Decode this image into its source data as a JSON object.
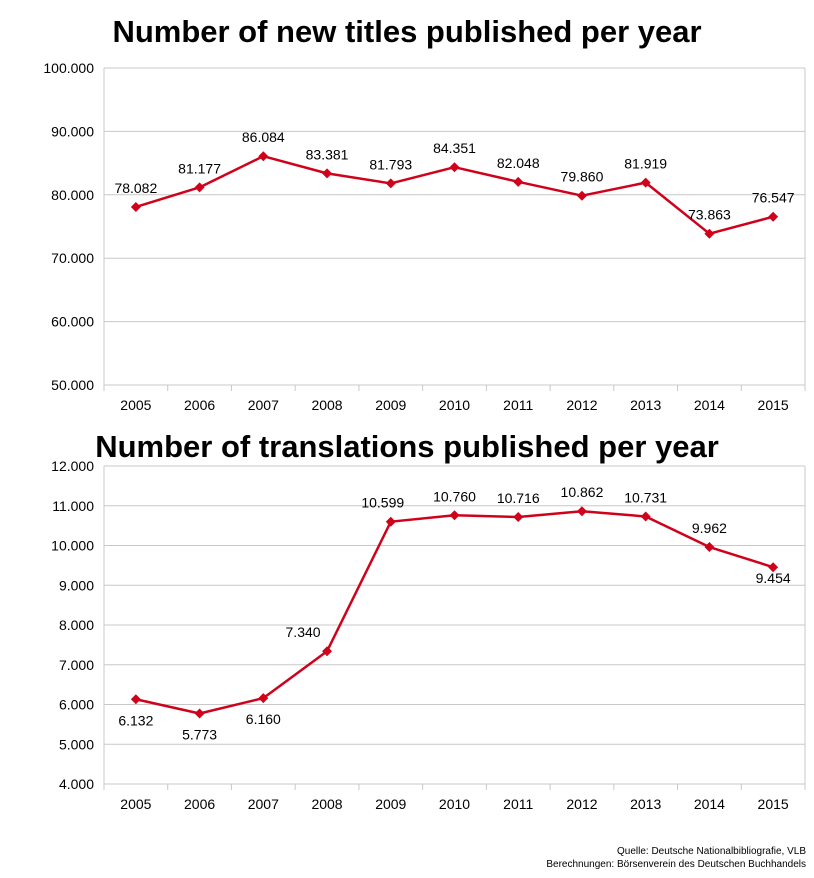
{
  "chart_data": [
    {
      "type": "line",
      "title": "Number of new titles published per year",
      "categories": [
        "2005",
        "2006",
        "2007",
        "2008",
        "2009",
        "2010",
        "2011",
        "2012",
        "2013",
        "2014",
        "2015"
      ],
      "values": [
        78082,
        81177,
        86084,
        83381,
        81793,
        84351,
        82048,
        79860,
        81919,
        73863,
        76547
      ],
      "value_labels": [
        "78.082",
        "81.177",
        "86.084",
        "83.381",
        "81.793",
        "84.351",
        "82.048",
        "79.860",
        "81.919",
        "73.863",
        "76.547"
      ],
      "ylim": [
        50000,
        100000
      ],
      "yticks": [
        50000,
        60000,
        70000,
        80000,
        90000,
        100000
      ],
      "ytick_labels": [
        "50.000",
        "60.000",
        "70.000",
        "80.000",
        "90.000",
        "100.000"
      ],
      "grid": true,
      "color": "#d0021b"
    },
    {
      "type": "line",
      "title": "Number of translations published per year",
      "categories": [
        "2005",
        "2006",
        "2007",
        "2008",
        "2009",
        "2010",
        "2011",
        "2012",
        "2013",
        "2014",
        "2015"
      ],
      "values": [
        6132,
        5773,
        6160,
        7340,
        10599,
        10760,
        10716,
        10862,
        10731,
        9962,
        9454
      ],
      "value_labels": [
        "6.132",
        "5.773",
        "6.160",
        "7.340",
        "10.599",
        "10.760",
        "10.716",
        "10.862",
        "10.731",
        "9.962",
        "9.454"
      ],
      "ylim": [
        4000,
        12000
      ],
      "yticks": [
        4000,
        5000,
        6000,
        7000,
        8000,
        9000,
        10000,
        11000,
        12000
      ],
      "ytick_labels": [
        "4.000",
        "5.000",
        "6.000",
        "7.000",
        "8.000",
        "9.000",
        "10.000",
        "11.000",
        "12.000"
      ],
      "grid": true,
      "color": "#d0021b"
    }
  ],
  "source": {
    "line1": "Quelle: Deutsche Nationalbibliografie, VLB",
    "line2": "Berechnungen: Börsenverein des Deutschen Buchhandels"
  }
}
